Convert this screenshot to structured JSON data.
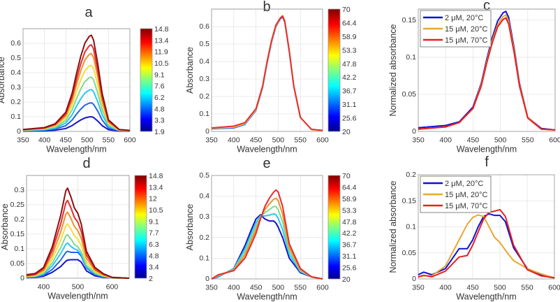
{
  "chart_data": [
    {
      "panel": "a",
      "type": "line",
      "title": "a",
      "xlabel": "Wavelength/nm",
      "ylabel": "Absorbance",
      "xlim": [
        350,
        600
      ],
      "ylim": [
        0,
        0.7
      ],
      "xticks": [
        350,
        400,
        450,
        500,
        550,
        600
      ],
      "yticks": [
        0,
        0.1,
        0.2,
        0.3,
        0.4,
        0.5,
        0.6
      ],
      "grid": true,
      "colorbar": {
        "colormap": "jet",
        "ticks": [
          "14.8",
          "13.4",
          "11.9",
          "10.5",
          "9.1",
          "7.6",
          "6.2",
          "4.8",
          "3.3",
          "1.9"
        ]
      },
      "x": [
        350,
        400,
        425,
        450,
        465,
        475,
        485,
        495,
        505,
        510,
        515,
        525,
        535,
        550,
        575,
        600
      ],
      "series": [
        {
          "color": "#1414c8",
          "values": [
            0.002,
            0.004,
            0.008,
            0.02,
            0.04,
            0.06,
            0.078,
            0.092,
            0.099,
            0.1,
            0.095,
            0.07,
            0.04,
            0.012,
            0.002,
            0.001
          ]
        },
        {
          "color": "#2464e6",
          "values": [
            0.004,
            0.008,
            0.016,
            0.039,
            0.078,
            0.117,
            0.152,
            0.179,
            0.193,
            0.195,
            0.185,
            0.137,
            0.078,
            0.023,
            0.004,
            0.002
          ]
        },
        {
          "color": "#2ec8f0",
          "values": [
            0.006,
            0.011,
            0.023,
            0.057,
            0.114,
            0.171,
            0.222,
            0.262,
            0.282,
            0.285,
            0.271,
            0.2,
            0.114,
            0.034,
            0.006,
            0.003
          ]
        },
        {
          "color": "#80dc8c",
          "values": [
            0.007,
            0.015,
            0.03,
            0.074,
            0.148,
            0.222,
            0.289,
            0.34,
            0.366,
            0.37,
            0.352,
            0.259,
            0.148,
            0.044,
            0.007,
            0.004
          ]
        },
        {
          "color": "#f0e040",
          "values": [
            0.009,
            0.018,
            0.036,
            0.09,
            0.18,
            0.27,
            0.351,
            0.414,
            0.446,
            0.45,
            0.428,
            0.315,
            0.18,
            0.054,
            0.009,
            0.005
          ]
        },
        {
          "color": "#f0902c",
          "values": [
            0.011,
            0.021,
            0.042,
            0.106,
            0.212,
            0.318,
            0.413,
            0.488,
            0.525,
            0.53,
            0.504,
            0.371,
            0.212,
            0.064,
            0.011,
            0.005
          ]
        },
        {
          "color": "#e82c2c",
          "values": [
            0.012,
            0.024,
            0.047,
            0.118,
            0.236,
            0.354,
            0.46,
            0.543,
            0.584,
            0.59,
            0.561,
            0.413,
            0.236,
            0.071,
            0.012,
            0.006
          ]
        },
        {
          "color": "#8c1010",
          "values": [
            0.013,
            0.026,
            0.052,
            0.131,
            0.262,
            0.393,
            0.511,
            0.603,
            0.648,
            0.655,
            0.622,
            0.459,
            0.262,
            0.079,
            0.013,
            0.007
          ]
        }
      ]
    },
    {
      "panel": "b",
      "type": "line",
      "title": "b",
      "xlabel": "Wavelength/nm",
      "ylabel": "Absorbance",
      "xlim": [
        350,
        600
      ],
      "ylim": [
        0,
        0.7
      ],
      "xticks": [
        350,
        400,
        450,
        500,
        550,
        600
      ],
      "yticks": [
        0,
        0.1,
        0.2,
        0.3,
        0.4,
        0.5,
        0.6
      ],
      "grid": true,
      "colorbar": {
        "colormap": "jet",
        "ticks": [
          "70",
          "64.4",
          "58.9",
          "53.3",
          "47.8",
          "42.2",
          "36.7",
          "31.1",
          "25.6",
          "20"
        ]
      },
      "x": [
        350,
        400,
        425,
        450,
        465,
        475,
        485,
        495,
        505,
        510,
        515,
        525,
        535,
        550,
        575,
        600
      ],
      "series": [
        {
          "color": "#2464e6",
          "values": [
            0.015,
            0.02,
            0.04,
            0.12,
            0.25,
            0.39,
            0.51,
            0.6,
            0.645,
            0.655,
            0.625,
            0.455,
            0.26,
            0.08,
            0.01,
            0.005
          ]
        },
        {
          "color": "#f0e040",
          "values": [
            0.018,
            0.025,
            0.045,
            0.125,
            0.255,
            0.395,
            0.515,
            0.605,
            0.65,
            0.665,
            0.63,
            0.46,
            0.26,
            0.08,
            0.01,
            0.005
          ]
        },
        {
          "color": "#e82c2c",
          "values": [
            0.02,
            0.03,
            0.05,
            0.13,
            0.26,
            0.4,
            0.52,
            0.61,
            0.65,
            0.66,
            0.63,
            0.46,
            0.26,
            0.08,
            0.012,
            0.006
          ]
        }
      ]
    },
    {
      "panel": "c",
      "type": "line",
      "title": "c",
      "xlabel": "Wavelength/nm",
      "ylabel": "Normalized absorbance",
      "xlim": [
        350,
        600
      ],
      "ylim": [
        0,
        0.165
      ],
      "xticks": [
        350,
        400,
        450,
        500,
        550,
        600
      ],
      "yticks": [
        0,
        0.05,
        0.1,
        0.15
      ],
      "grid": true,
      "legend": "top-left",
      "x": [
        350,
        400,
        425,
        450,
        465,
        475,
        485,
        495,
        505,
        510,
        515,
        525,
        535,
        550,
        575,
        600
      ],
      "series": [
        {
          "name": "2 μM, 20°C",
          "color": "#1010d8",
          "values": [
            0.005,
            0.008,
            0.013,
            0.033,
            0.065,
            0.097,
            0.126,
            0.149,
            0.16,
            0.162,
            0.154,
            0.113,
            0.065,
            0.019,
            0.004,
            0.002
          ]
        },
        {
          "name": "15 μM, 20°C",
          "color": "#e8a830",
          "values": [
            0.003,
            0.006,
            0.012,
            0.031,
            0.063,
            0.094,
            0.122,
            0.144,
            0.155,
            0.157,
            0.149,
            0.11,
            0.063,
            0.019,
            0.003,
            0.002
          ]
        },
        {
          "name": "15 μM, 70°C",
          "color": "#e82020",
          "values": [
            0.003,
            0.006,
            0.012,
            0.031,
            0.061,
            0.092,
            0.119,
            0.141,
            0.151,
            0.153,
            0.145,
            0.107,
            0.061,
            0.018,
            0.003,
            0.002
          ]
        }
      ]
    },
    {
      "panel": "d",
      "type": "line",
      "title": "d",
      "xlabel": "Wavelength/nm",
      "ylabel": "Absorbance",
      "xlim": [
        350,
        650
      ],
      "ylim": [
        0,
        0.35
      ],
      "xticks": [
        400,
        500,
        600
      ],
      "yticks": [
        0,
        0.05,
        0.1,
        0.15,
        0.2,
        0.25,
        0.3
      ],
      "grid": true,
      "colorbar": {
        "colormap": "jet",
        "ticks": [
          "14.8",
          "13.4",
          "12",
          "10.5",
          "9.1",
          "7.7",
          "6.3",
          "4.8",
          "3.4",
          "2"
        ]
      },
      "x": [
        350,
        375,
        400,
        425,
        450,
        465,
        470,
        480,
        490,
        500,
        510,
        525,
        550,
        575,
        600,
        650
      ],
      "series": [
        {
          "color": "#1414c8",
          "values": [
            0.002,
            0.003,
            0.007,
            0.02,
            0.04,
            0.058,
            0.062,
            0.063,
            0.063,
            0.063,
            0.055,
            0.025,
            0.008,
            0.003,
            0.001,
            0
          ]
        },
        {
          "color": "#2464e6",
          "values": [
            0.003,
            0.004,
            0.01,
            0.03,
            0.062,
            0.088,
            0.092,
            0.088,
            0.088,
            0.088,
            0.075,
            0.035,
            0.012,
            0.005,
            0.001,
            0
          ]
        },
        {
          "color": "#2ec8f0",
          "values": [
            0.004,
            0.006,
            0.014,
            0.042,
            0.084,
            0.116,
            0.12,
            0.108,
            0.1,
            0.095,
            0.08,
            0.038,
            0.015,
            0.006,
            0.001,
            0
          ]
        },
        {
          "color": "#80dc8c",
          "values": [
            0.005,
            0.007,
            0.018,
            0.052,
            0.104,
            0.144,
            0.148,
            0.133,
            0.115,
            0.107,
            0.089,
            0.044,
            0.018,
            0.007,
            0.001,
            0
          ]
        },
        {
          "color": "#f0e040",
          "values": [
            0.006,
            0.009,
            0.022,
            0.065,
            0.13,
            0.179,
            0.185,
            0.167,
            0.144,
            0.133,
            0.111,
            0.056,
            0.022,
            0.009,
            0.002,
            0
          ]
        },
        {
          "color": "#f0902c",
          "values": [
            0.007,
            0.011,
            0.027,
            0.079,
            0.158,
            0.218,
            0.225,
            0.203,
            0.176,
            0.162,
            0.135,
            0.068,
            0.027,
            0.011,
            0.002,
            0
          ]
        },
        {
          "color": "#e82c2c",
          "values": [
            0.009,
            0.013,
            0.032,
            0.093,
            0.186,
            0.257,
            0.265,
            0.239,
            0.207,
            0.191,
            0.159,
            0.08,
            0.032,
            0.013,
            0.003,
            0
          ]
        },
        {
          "color": "#8c1010",
          "values": [
            0.012,
            0.016,
            0.037,
            0.107,
            0.215,
            0.298,
            0.307,
            0.276,
            0.239,
            0.221,
            0.184,
            0.092,
            0.037,
            0.015,
            0.003,
            0
          ]
        }
      ]
    },
    {
      "panel": "e",
      "type": "line",
      "title": "e",
      "xlabel": "Wavelength/nm",
      "ylabel": "Absorbance",
      "xlim": [
        350,
        600
      ],
      "ylim": [
        0,
        0.5
      ],
      "xticks": [
        350,
        400,
        450,
        500,
        550,
        600
      ],
      "yticks": [
        0,
        0.1,
        0.2,
        0.3,
        0.4,
        0.5
      ],
      "grid": true,
      "colorbar": {
        "colormap": "jet",
        "ticks": [
          "70",
          "64.4",
          "58.9",
          "53.3",
          "47.8",
          "42.2",
          "36.7",
          "31.1",
          "25.6",
          "20"
        ]
      },
      "x": [
        350,
        365,
        400,
        425,
        440,
        450,
        460,
        470,
        480,
        490,
        495,
        500,
        510,
        525,
        550,
        575,
        600
      ],
      "series": [
        {
          "color": "#1414c8",
          "values": [
            0,
            0.01,
            0.05,
            0.16,
            0.24,
            0.29,
            0.31,
            0.29,
            0.28,
            0.28,
            0.27,
            0.25,
            0.2,
            0.1,
            0.03,
            0.01,
            0
          ]
        },
        {
          "color": "#2ec8f0",
          "values": [
            0,
            0.012,
            0.048,
            0.145,
            0.222,
            0.272,
            0.305,
            0.305,
            0.308,
            0.315,
            0.31,
            0.293,
            0.238,
            0.118,
            0.035,
            0.01,
            0
          ]
        },
        {
          "color": "#80dc8c",
          "values": [
            0,
            0.015,
            0.045,
            0.13,
            0.205,
            0.255,
            0.3,
            0.32,
            0.335,
            0.35,
            0.35,
            0.335,
            0.275,
            0.135,
            0.04,
            0.01,
            0
          ]
        },
        {
          "color": "#f0902c",
          "values": [
            0,
            0.018,
            0.042,
            0.115,
            0.188,
            0.238,
            0.295,
            0.335,
            0.362,
            0.385,
            0.39,
            0.378,
            0.312,
            0.152,
            0.045,
            0.01,
            0
          ]
        },
        {
          "color": "#e82c2c",
          "values": [
            0,
            0.02,
            0.04,
            0.1,
            0.17,
            0.22,
            0.29,
            0.35,
            0.39,
            0.42,
            0.43,
            0.42,
            0.35,
            0.17,
            0.05,
            0.01,
            0
          ]
        }
      ]
    },
    {
      "panel": "f",
      "type": "line",
      "title": "f",
      "xlabel": "Wavelength/nm",
      "ylabel": "Normalized absorbance",
      "xlim": [
        350,
        600
      ],
      "ylim": [
        0,
        0.2
      ],
      "xticks": [
        350,
        400,
        450,
        500,
        550,
        600
      ],
      "yticks": [
        0,
        0.05,
        0.1,
        0.15,
        0.2
      ],
      "grid": true,
      "legend": "top-left",
      "x": [
        350,
        360,
        375,
        400,
        425,
        440,
        450,
        460,
        470,
        480,
        490,
        500,
        510,
        525,
        550,
        575,
        600
      ],
      "series": [
        {
          "name": "2 μM, 20°C",
          "color": "#1010d8",
          "values": [
            0.008,
            0.013,
            0.008,
            0.02,
            0.058,
            0.058,
            0.075,
            0.1,
            0.12,
            0.125,
            0.122,
            0.122,
            0.11,
            0.06,
            0.02,
            0.008,
            0.002
          ]
        },
        {
          "name": "15 μM, 20°C",
          "color": "#e8a830",
          "values": [
            0.004,
            0.006,
            0.006,
            0.025,
            0.075,
            0.105,
            0.118,
            0.123,
            0.12,
            0.1,
            0.08,
            0.07,
            0.055,
            0.035,
            0.02,
            0.01,
            0.002
          ]
        },
        {
          "name": "15 μM, 70°C",
          "color": "#e82020",
          "values": [
            0.004,
            0.007,
            0.004,
            0.015,
            0.042,
            0.045,
            0.065,
            0.09,
            0.115,
            0.128,
            0.13,
            0.133,
            0.12,
            0.065,
            0.018,
            0.006,
            0.002
          ]
        }
      ]
    }
  ]
}
